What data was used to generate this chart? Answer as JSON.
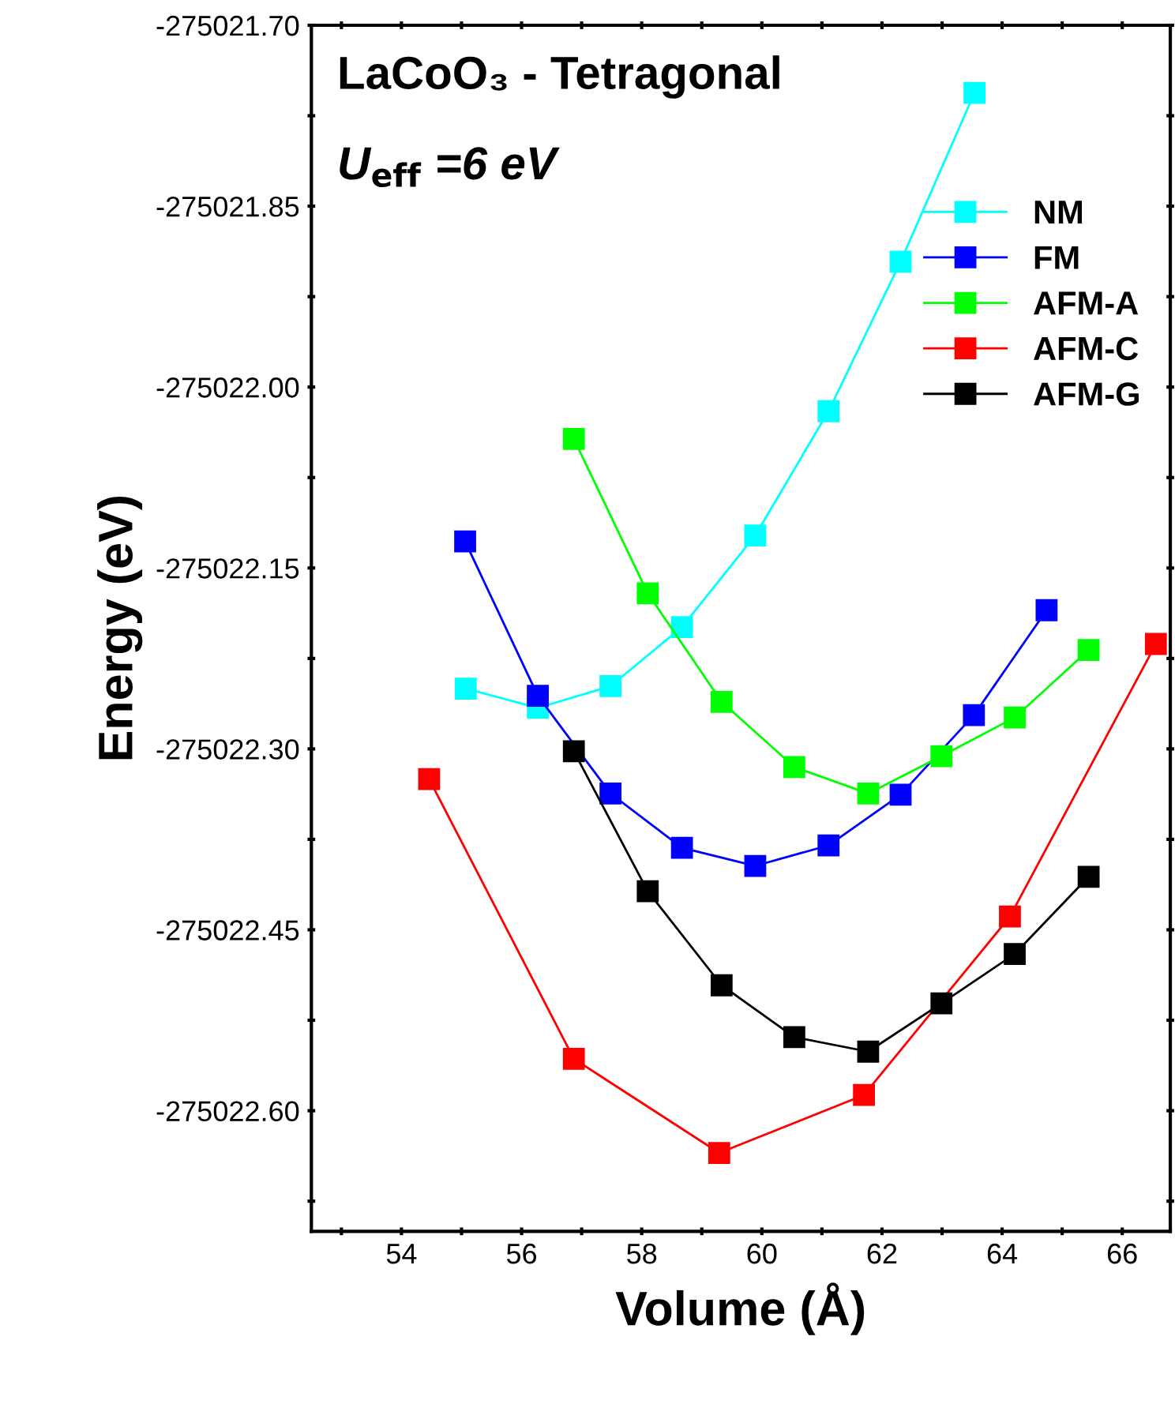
{
  "chart_data": {
    "type": "line",
    "title": "LaCoO₃ - Tetragonal",
    "subtitle": "U$_{eff}$ =6 eV",
    "xlabel": "Volume (Å)",
    "ylabel": "Energy (eV)",
    "xlim": [
      52.5,
      66.8
    ],
    "ylim": [
      -275022.7,
      -275021.7
    ],
    "xticks": [
      {
        "value": 53,
        "label": null
      },
      54,
      {
        "value": 55,
        "label": null
      },
      56,
      {
        "value": 57,
        "label": null
      },
      58,
      {
        "value": 59,
        "label": null
      },
      60,
      {
        "value": 61,
        "label": null
      },
      62,
      {
        "value": 63,
        "label": null
      },
      64,
      {
        "value": 65,
        "label": null
      },
      66
    ],
    "yticks": [
      {
        "value": -275021.7,
        "label": "-275021.70"
      },
      {
        "value": -275021.775,
        "label": null
      },
      {
        "value": -275021.85,
        "label": "-275021.85"
      },
      {
        "value": -275021.925,
        "label": null
      },
      {
        "value": -275022.0,
        "label": "-275022.00"
      },
      {
        "value": -275022.075,
        "label": null
      },
      {
        "value": -275022.15,
        "label": "-275022.15"
      },
      {
        "value": -275022.225,
        "label": null
      },
      {
        "value": -275022.3,
        "label": "-275022.30"
      },
      {
        "value": -275022.375,
        "label": null
      },
      {
        "value": -275022.45,
        "label": "-275022.45"
      },
      {
        "value": -275022.525,
        "label": null
      },
      {
        "value": -275022.6,
        "label": "-275022.60"
      },
      {
        "value": -275022.675,
        "label": null
      }
    ],
    "grid": false,
    "legend": "top right",
    "marker": "square",
    "line_style": "solid",
    "series": [
      {
        "name": "NM",
        "color": "#00ffff",
        "x": [
          55.07,
          56.27,
          57.48,
          58.67,
          59.89,
          61.11,
          62.31,
          63.54
        ],
        "values": [
          -275022.25,
          -275022.266,
          -275022.248,
          -275022.199,
          -275022.123,
          -275022.02,
          -275021.896,
          -275021.756
        ]
      },
      {
        "name": "FM",
        "color": "#0000ff",
        "x": [
          55.06,
          56.27,
          57.48,
          58.67,
          59.89,
          61.11,
          62.31,
          63.53,
          64.74
        ],
        "values": [
          -275022.128,
          -275022.256,
          -275022.337,
          -275022.382,
          -275022.397,
          -275022.38,
          -275022.338,
          -275022.272,
          -275022.185
        ]
      },
      {
        "name": "AFM-A",
        "color": "#00ff00",
        "x": [
          56.87,
          58.1,
          59.33,
          60.54,
          61.77,
          62.99,
          64.21,
          65.44
        ],
        "values": [
          -275022.043,
          -275022.171,
          -275022.261,
          -275022.315,
          -275022.337,
          -275022.306,
          -275022.274,
          -275022.218
        ]
      },
      {
        "name": "AFM-C",
        "color": "#ff0000",
        "x": [
          54.46,
          56.87,
          59.29,
          61.7,
          64.13,
          66.56
        ],
        "values": [
          -275022.325,
          -275022.557,
          -275022.635,
          -275022.587,
          -275022.439,
          -275022.213
        ]
      },
      {
        "name": "AFM-G",
        "color": "#000000",
        "x": [
          56.87,
          58.1,
          59.33,
          60.54,
          61.77,
          62.99,
          64.21,
          65.44
        ],
        "values": [
          -275022.302,
          -275022.418,
          -275022.496,
          -275022.539,
          -275022.551,
          -275022.511,
          -275022.47,
          -275022.406
        ]
      }
    ]
  }
}
